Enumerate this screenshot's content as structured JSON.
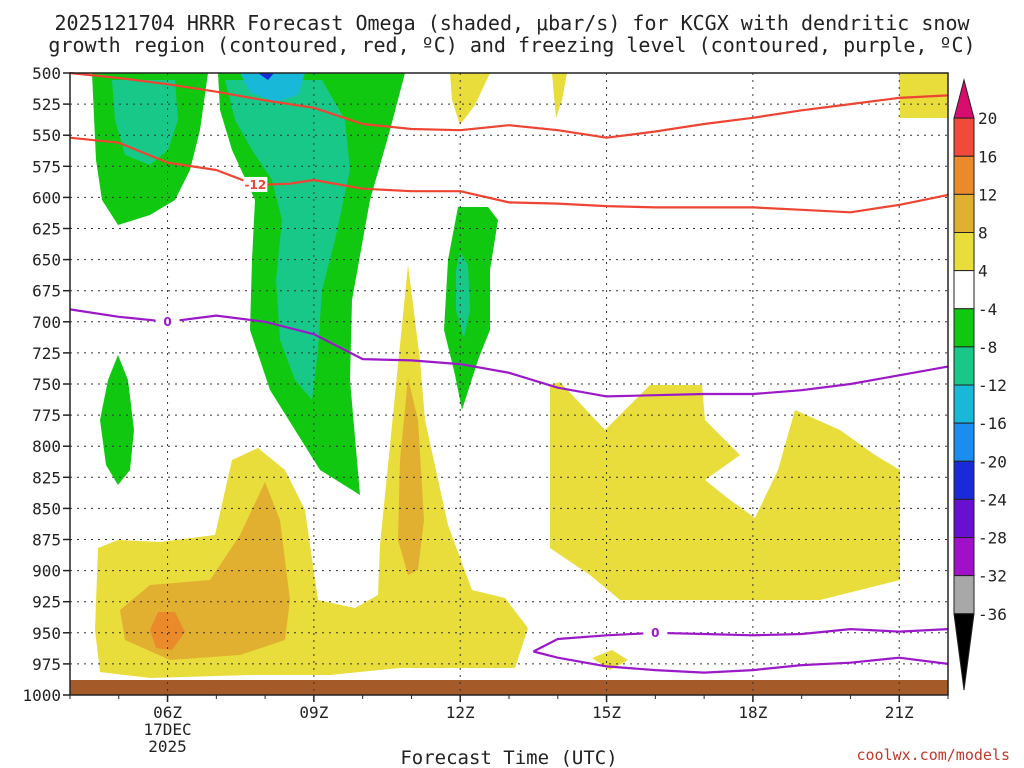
{
  "title_lines": [
    "2025121704 HRRR Forecast Omega (shaded, μbar/s) for KCGX with dendritic snow",
    "growth region (contoured, red, ºC) and freezing level (contoured, purple, ºC)"
  ],
  "credit": "coolwx.com/models",
  "chart_data": {
    "type": "contour",
    "xlabel": "Forecast Time (UTC)",
    "ylabel": "",
    "x_ticks": [
      {
        "hour": 6,
        "label": "06Z",
        "sub": [
          "17DEC",
          "2025"
        ]
      },
      {
        "hour": 9,
        "label": "09Z"
      },
      {
        "hour": 12,
        "label": "12Z"
      },
      {
        "hour": 15,
        "label": "15Z"
      },
      {
        "hour": 18,
        "label": "18Z"
      },
      {
        "hour": 21,
        "label": "21Z"
      }
    ],
    "xlim_hours": [
      4,
      22
    ],
    "y_ticks": [
      500,
      525,
      550,
      575,
      600,
      625,
      650,
      675,
      700,
      725,
      750,
      775,
      800,
      825,
      850,
      875,
      900,
      925,
      950,
      975,
      1000
    ],
    "ylim_hpa": [
      500,
      1000
    ],
    "colorbar": {
      "levels": [
        "20",
        "16",
        "12",
        "8",
        "4",
        "-4",
        "-8",
        "-12",
        "-16",
        "-20",
        "-24",
        "-28",
        "-32",
        "-36"
      ],
      "colors": [
        "#d80e6e",
        "#f04a3a",
        "#ea8a2a",
        "#e2b030",
        "#e8dd3a",
        "#ffffff",
        "#10c810",
        "#18c888",
        "#18b8d8",
        "#1a8ef0",
        "#1a2ad8",
        "#6810d0",
        "#a010c8",
        "#a8a8a8",
        "#000000"
      ]
    },
    "contours": [
      {
        "name": "-12 °C",
        "label": "-12",
        "color": "#ee4433",
        "points": [
          [
            4,
            552
          ],
          [
            5,
            556
          ],
          [
            6,
            572
          ],
          [
            7,
            578
          ],
          [
            7.8,
            590
          ],
          [
            8.5,
            589
          ],
          [
            9,
            586
          ],
          [
            10,
            593
          ],
          [
            11,
            595
          ],
          [
            12,
            595
          ],
          [
            13,
            604
          ],
          [
            14,
            605
          ],
          [
            15,
            607
          ],
          [
            16,
            608
          ],
          [
            17,
            608
          ],
          [
            18,
            608
          ],
          [
            19,
            610
          ],
          [
            20,
            612
          ],
          [
            21,
            606
          ],
          [
            22,
            598
          ]
        ]
      },
      {
        "name": "-12 °C upper",
        "label": "",
        "color": "#ee4433",
        "points": [
          [
            4,
            500
          ],
          [
            5,
            504
          ],
          [
            6,
            509
          ],
          [
            7,
            515
          ],
          [
            8,
            522
          ],
          [
            9,
            528
          ],
          [
            10,
            541
          ],
          [
            11,
            545
          ],
          [
            12,
            546
          ],
          [
            13,
            542
          ],
          [
            14,
            546
          ],
          [
            15,
            552
          ],
          [
            16,
            547
          ],
          [
            17,
            541
          ],
          [
            18,
            536
          ],
          [
            19,
            530
          ],
          [
            20,
            525
          ],
          [
            21,
            520
          ],
          [
            22,
            518
          ]
        ]
      },
      {
        "name": "0 °C",
        "label": "0",
        "color": "#9b19c8",
        "points": [
          [
            4,
            690
          ],
          [
            5,
            696
          ],
          [
            6,
            700
          ],
          [
            7,
            695
          ],
          [
            8,
            700
          ],
          [
            9,
            710
          ],
          [
            10,
            730
          ],
          [
            11,
            731
          ],
          [
            12,
            734
          ],
          [
            13,
            741
          ],
          [
            14,
            753
          ],
          [
            15,
            760
          ],
          [
            16,
            759
          ],
          [
            17,
            758
          ],
          [
            18,
            758
          ],
          [
            19,
            755
          ],
          [
            20,
            750
          ],
          [
            21,
            743
          ],
          [
            22,
            736
          ]
        ]
      },
      {
        "name": "0 °C lower",
        "label": "0",
        "color": "#9b19c8",
        "points": [
          [
            13.5,
            965
          ],
          [
            14,
            955
          ],
          [
            15,
            952
          ],
          [
            16,
            950
          ],
          [
            17,
            951
          ],
          [
            18,
            952
          ],
          [
            19,
            951
          ],
          [
            20,
            947
          ],
          [
            21,
            949
          ],
          [
            22,
            947
          ]
        ]
      },
      {
        "name": "0 °C lower2",
        "label": "",
        "color": "#9b19c8",
        "points": [
          [
            13.5,
            965
          ],
          [
            14,
            970
          ],
          [
            15,
            977
          ],
          [
            16,
            980
          ],
          [
            17,
            982
          ],
          [
            18,
            980
          ],
          [
            19,
            976
          ],
          [
            20,
            974
          ],
          [
            21,
            970
          ],
          [
            22,
            975
          ]
        ]
      }
    ],
    "ground_hpa": 990
  }
}
